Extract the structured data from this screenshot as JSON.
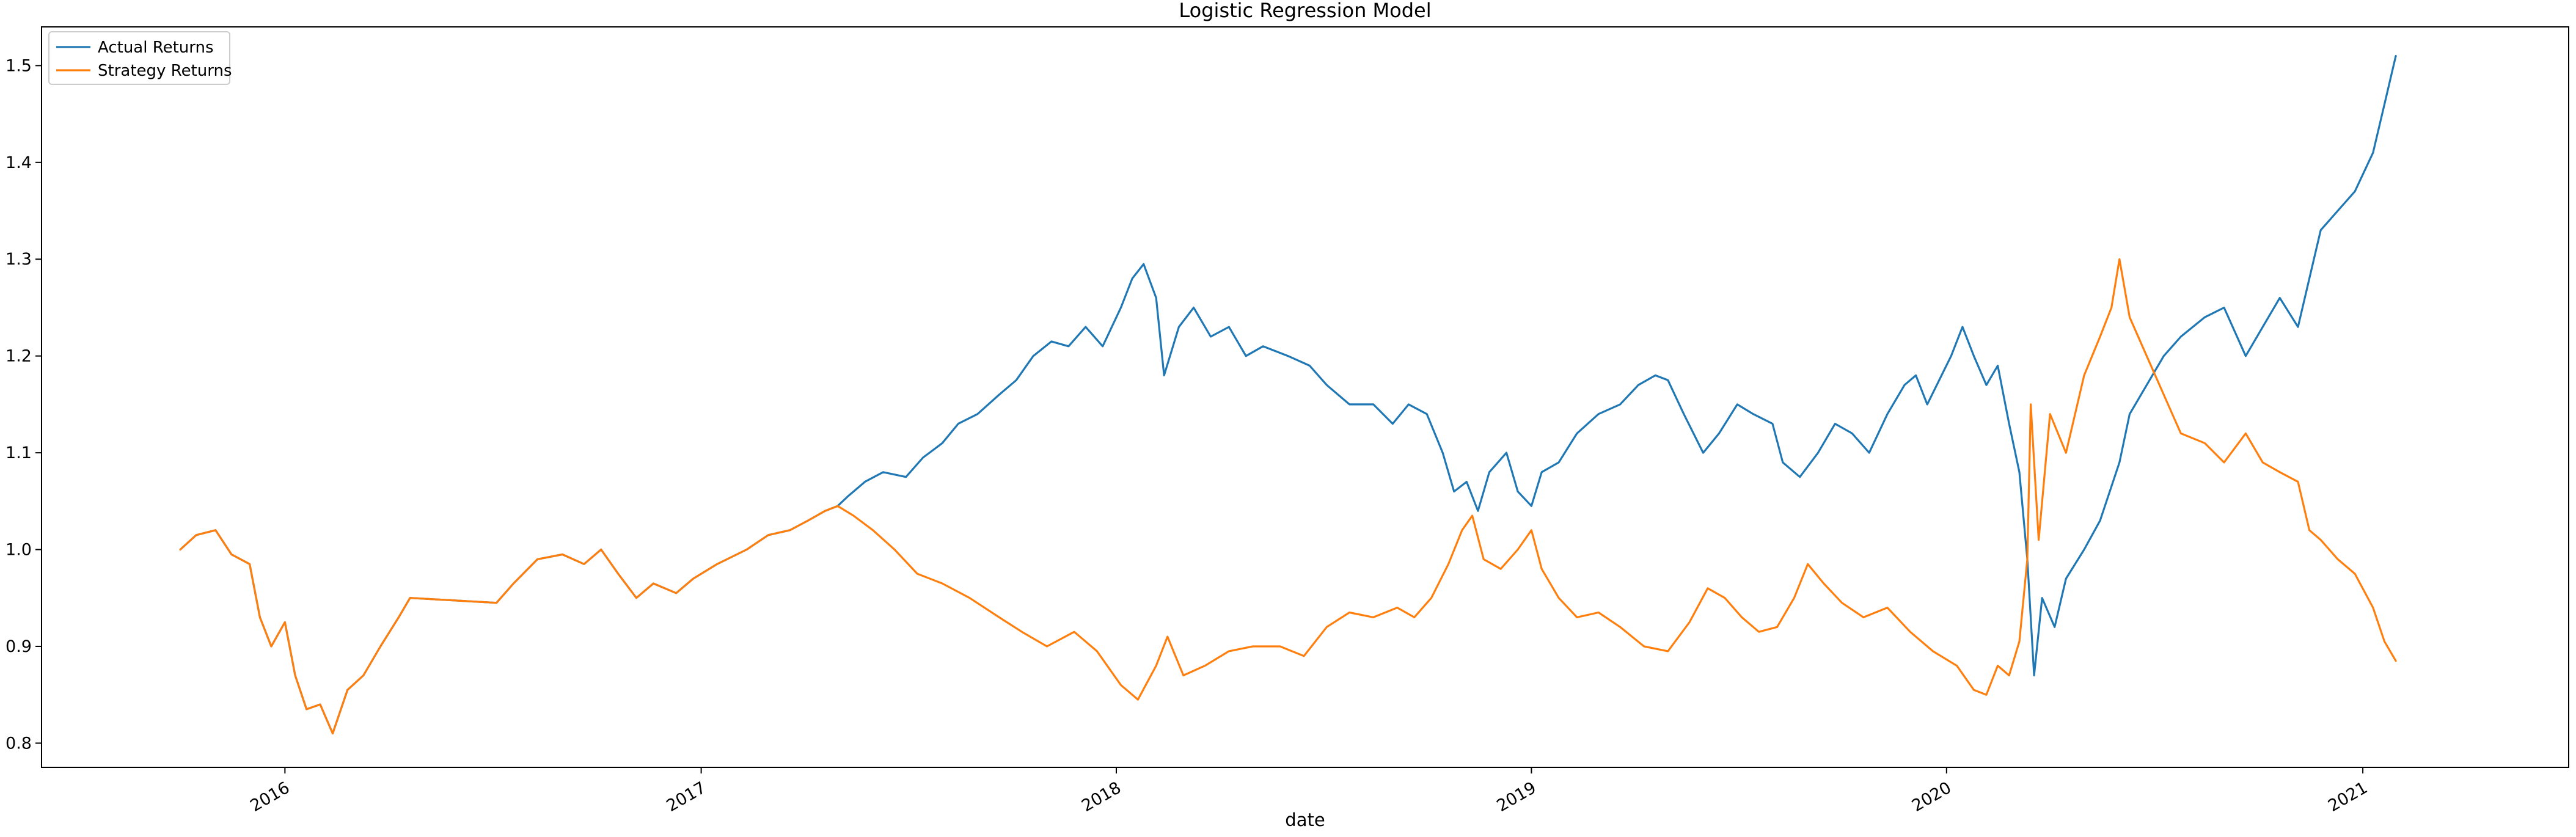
{
  "chart_data": {
    "type": "line",
    "title": "Logistic Regression Model",
    "xlabel": "date",
    "ylabel": "",
    "xlim": [
      "2015-06-01",
      "2021-07-01"
    ],
    "ylim": [
      0.775,
      1.54
    ],
    "x_tick_labels": [
      "2016",
      "2017",
      "2018",
      "2019",
      "2020",
      "2021"
    ],
    "x_tick_values": [
      "2016-01-01",
      "2017-01-01",
      "2018-01-01",
      "2019-01-01",
      "2020-01-01",
      "2021-01-01"
    ],
    "y_tick_labels": [
      "0.8",
      "0.9",
      "1.0",
      "1.1",
      "1.2",
      "1.3",
      "1.4",
      "1.5"
    ],
    "y_tick_values": [
      0.8,
      0.9,
      1.0,
      1.1,
      1.2,
      1.3,
      1.4,
      1.5
    ],
    "grid": false,
    "legend_position": "top-left",
    "series": [
      {
        "name": "Actual Returns",
        "color": "#1f77b4",
        "points": [
          [
            "2015-10-01",
            1.0
          ],
          [
            "2015-10-15",
            1.015
          ],
          [
            "2015-11-01",
            1.02
          ],
          [
            "2015-11-15",
            0.995
          ],
          [
            "2015-12-01",
            0.985
          ],
          [
            "2015-12-10",
            0.93
          ],
          [
            "2015-12-20",
            0.9
          ],
          [
            "2016-01-01",
            0.925
          ],
          [
            "2016-01-10",
            0.87
          ],
          [
            "2016-01-20",
            0.835
          ],
          [
            "2016-02-01",
            0.84
          ],
          [
            "2016-02-12",
            0.81
          ],
          [
            "2016-02-25",
            0.855
          ],
          [
            "2016-03-10",
            0.87
          ],
          [
            "2016-03-25",
            0.9
          ],
          [
            "2016-04-10",
            0.93
          ],
          [
            "2016-04-20",
            0.95
          ],
          [
            "2016-07-05",
            0.945
          ],
          [
            "2016-07-20",
            0.965
          ],
          [
            "2016-08-10",
            0.99
          ],
          [
            "2016-09-01",
            0.995
          ],
          [
            "2016-09-20",
            0.985
          ],
          [
            "2016-10-05",
            1.0
          ],
          [
            "2016-10-20",
            0.975
          ],
          [
            "2016-11-05",
            0.95
          ],
          [
            "2016-11-20",
            0.965
          ],
          [
            "2016-12-10",
            0.955
          ],
          [
            "2016-12-25",
            0.97
          ],
          [
            "2017-01-15",
            0.985
          ],
          [
            "2017-02-10",
            1.0
          ],
          [
            "2017-03-01",
            1.015
          ],
          [
            "2017-03-20",
            1.02
          ],
          [
            "2017-04-05",
            1.03
          ],
          [
            "2017-04-20",
            1.04
          ],
          [
            "2017-05-01",
            1.045
          ],
          [
            "2017-05-10",
            1.055
          ],
          [
            "2017-05-25",
            1.07
          ],
          [
            "2017-06-10",
            1.08
          ],
          [
            "2017-06-30",
            1.075
          ],
          [
            "2017-07-15",
            1.095
          ],
          [
            "2017-08-01",
            1.11
          ],
          [
            "2017-08-15",
            1.13
          ],
          [
            "2017-09-01",
            1.14
          ],
          [
            "2017-09-20",
            1.16
          ],
          [
            "2017-10-05",
            1.175
          ],
          [
            "2017-10-20",
            1.2
          ],
          [
            "2017-11-05",
            1.215
          ],
          [
            "2017-11-20",
            1.21
          ],
          [
            "2017-12-05",
            1.23
          ],
          [
            "2017-12-20",
            1.21
          ],
          [
            "2018-01-05",
            1.25
          ],
          [
            "2018-01-15",
            1.28
          ],
          [
            "2018-01-25",
            1.295
          ],
          [
            "2018-02-05",
            1.26
          ],
          [
            "2018-02-12",
            1.18
          ],
          [
            "2018-02-25",
            1.23
          ],
          [
            "2018-03-10",
            1.25
          ],
          [
            "2018-03-25",
            1.22
          ],
          [
            "2018-04-10",
            1.23
          ],
          [
            "2018-04-25",
            1.2
          ],
          [
            "2018-05-10",
            1.21
          ],
          [
            "2018-06-01",
            1.2
          ],
          [
            "2018-06-20",
            1.19
          ],
          [
            "2018-07-05",
            1.17
          ],
          [
            "2018-07-25",
            1.15
          ],
          [
            "2018-08-15",
            1.15
          ],
          [
            "2018-09-01",
            1.13
          ],
          [
            "2018-09-15",
            1.15
          ],
          [
            "2018-10-01",
            1.14
          ],
          [
            "2018-10-15",
            1.1
          ],
          [
            "2018-10-25",
            1.06
          ],
          [
            "2018-11-05",
            1.07
          ],
          [
            "2018-11-15",
            1.04
          ],
          [
            "2018-11-25",
            1.08
          ],
          [
            "2018-12-10",
            1.1
          ],
          [
            "2018-12-20",
            1.06
          ],
          [
            "2019-01-01",
            1.045
          ],
          [
            "2019-01-10",
            1.08
          ],
          [
            "2019-01-25",
            1.09
          ],
          [
            "2019-02-10",
            1.12
          ],
          [
            "2019-03-01",
            1.14
          ],
          [
            "2019-03-20",
            1.15
          ],
          [
            "2019-04-05",
            1.17
          ],
          [
            "2019-04-20",
            1.18
          ],
          [
            "2019-05-01",
            1.175
          ],
          [
            "2019-05-15",
            1.14
          ],
          [
            "2019-06-01",
            1.1
          ],
          [
            "2019-06-15",
            1.12
          ],
          [
            "2019-07-01",
            1.15
          ],
          [
            "2019-07-15",
            1.14
          ],
          [
            "2019-08-01",
            1.13
          ],
          [
            "2019-08-10",
            1.09
          ],
          [
            "2019-08-25",
            1.075
          ],
          [
            "2019-09-10",
            1.1
          ],
          [
            "2019-09-25",
            1.13
          ],
          [
            "2019-10-10",
            1.12
          ],
          [
            "2019-10-25",
            1.1
          ],
          [
            "2019-11-10",
            1.14
          ],
          [
            "2019-11-25",
            1.17
          ],
          [
            "2019-12-05",
            1.18
          ],
          [
            "2019-12-15",
            1.15
          ],
          [
            "2020-01-05",
            1.2
          ],
          [
            "2020-01-15",
            1.23
          ],
          [
            "2020-01-25",
            1.2
          ],
          [
            "2020-02-05",
            1.17
          ],
          [
            "2020-02-15",
            1.19
          ],
          [
            "2020-02-25",
            1.13
          ],
          [
            "2020-03-05",
            1.08
          ],
          [
            "2020-03-12",
            0.99
          ],
          [
            "2020-03-18",
            0.87
          ],
          [
            "2020-03-25",
            0.95
          ],
          [
            "2020-04-05",
            0.92
          ],
          [
            "2020-04-15",
            0.97
          ],
          [
            "2020-05-01",
            1.0
          ],
          [
            "2020-05-15",
            1.03
          ],
          [
            "2020-06-01",
            1.09
          ],
          [
            "2020-06-10",
            1.14
          ],
          [
            "2020-06-25",
            1.17
          ],
          [
            "2020-07-10",
            1.2
          ],
          [
            "2020-07-25",
            1.22
          ],
          [
            "2020-08-15",
            1.24
          ],
          [
            "2020-09-01",
            1.25
          ],
          [
            "2020-09-20",
            1.2
          ],
          [
            "2020-10-05",
            1.23
          ],
          [
            "2020-10-20",
            1.26
          ],
          [
            "2020-11-05",
            1.23
          ],
          [
            "2020-11-15",
            1.28
          ],
          [
            "2020-11-25",
            1.33
          ],
          [
            "2020-12-10",
            1.35
          ],
          [
            "2020-12-25",
            1.37
          ],
          [
            "2021-01-10",
            1.41
          ],
          [
            "2021-01-20",
            1.46
          ],
          [
            "2021-01-30",
            1.51
          ]
        ]
      },
      {
        "name": "Strategy Returns",
        "color": "#ff7f0e",
        "points": [
          [
            "2015-10-01",
            1.0
          ],
          [
            "2015-10-15",
            1.015
          ],
          [
            "2015-11-01",
            1.02
          ],
          [
            "2015-11-15",
            0.995
          ],
          [
            "2015-12-01",
            0.985
          ],
          [
            "2015-12-10",
            0.93
          ],
          [
            "2015-12-20",
            0.9
          ],
          [
            "2016-01-01",
            0.925
          ],
          [
            "2016-01-10",
            0.87
          ],
          [
            "2016-01-20",
            0.835
          ],
          [
            "2016-02-01",
            0.84
          ],
          [
            "2016-02-12",
            0.81
          ],
          [
            "2016-02-25",
            0.855
          ],
          [
            "2016-03-10",
            0.87
          ],
          [
            "2016-03-25",
            0.9
          ],
          [
            "2016-04-10",
            0.93
          ],
          [
            "2016-04-20",
            0.95
          ],
          [
            "2016-07-05",
            0.945
          ],
          [
            "2016-07-20",
            0.965
          ],
          [
            "2016-08-10",
            0.99
          ],
          [
            "2016-09-01",
            0.995
          ],
          [
            "2016-09-20",
            0.985
          ],
          [
            "2016-10-05",
            1.0
          ],
          [
            "2016-10-20",
            0.975
          ],
          [
            "2016-11-05",
            0.95
          ],
          [
            "2016-11-20",
            0.965
          ],
          [
            "2016-12-10",
            0.955
          ],
          [
            "2016-12-25",
            0.97
          ],
          [
            "2017-01-15",
            0.985
          ],
          [
            "2017-02-10",
            1.0
          ],
          [
            "2017-03-01",
            1.015
          ],
          [
            "2017-03-20",
            1.02
          ],
          [
            "2017-04-05",
            1.03
          ],
          [
            "2017-04-20",
            1.04
          ],
          [
            "2017-05-01",
            1.045
          ],
          [
            "2017-05-15",
            1.035
          ],
          [
            "2017-06-01",
            1.02
          ],
          [
            "2017-06-20",
            1.0
          ],
          [
            "2017-07-10",
            0.975
          ],
          [
            "2017-08-01",
            0.965
          ],
          [
            "2017-08-25",
            0.95
          ],
          [
            "2017-09-20",
            0.93
          ],
          [
            "2017-10-10",
            0.915
          ],
          [
            "2017-11-01",
            0.9
          ],
          [
            "2017-11-25",
            0.915
          ],
          [
            "2017-12-15",
            0.895
          ],
          [
            "2018-01-05",
            0.86
          ],
          [
            "2018-01-20",
            0.845
          ],
          [
            "2018-02-05",
            0.88
          ],
          [
            "2018-02-15",
            0.91
          ],
          [
            "2018-03-01",
            0.87
          ],
          [
            "2018-03-20",
            0.88
          ],
          [
            "2018-04-10",
            0.895
          ],
          [
            "2018-05-01",
            0.9
          ],
          [
            "2018-05-25",
            0.9
          ],
          [
            "2018-06-15",
            0.89
          ],
          [
            "2018-07-05",
            0.92
          ],
          [
            "2018-07-25",
            0.935
          ],
          [
            "2018-08-15",
            0.93
          ],
          [
            "2018-09-05",
            0.94
          ],
          [
            "2018-09-20",
            0.93
          ],
          [
            "2018-10-05",
            0.95
          ],
          [
            "2018-10-20",
            0.985
          ],
          [
            "2018-11-01",
            1.02
          ],
          [
            "2018-11-10",
            1.035
          ],
          [
            "2018-11-20",
            0.99
          ],
          [
            "2018-12-05",
            0.98
          ],
          [
            "2018-12-20",
            1.0
          ],
          [
            "2019-01-01",
            1.02
          ],
          [
            "2019-01-10",
            0.98
          ],
          [
            "2019-01-25",
            0.95
          ],
          [
            "2019-02-10",
            0.93
          ],
          [
            "2019-03-01",
            0.935
          ],
          [
            "2019-03-20",
            0.92
          ],
          [
            "2019-04-10",
            0.9
          ],
          [
            "2019-05-01",
            0.895
          ],
          [
            "2019-05-20",
            0.925
          ],
          [
            "2019-06-05",
            0.96
          ],
          [
            "2019-06-20",
            0.95
          ],
          [
            "2019-07-05",
            0.93
          ],
          [
            "2019-07-20",
            0.915
          ],
          [
            "2019-08-05",
            0.92
          ],
          [
            "2019-08-20",
            0.95
          ],
          [
            "2019-09-01",
            0.985
          ],
          [
            "2019-09-15",
            0.965
          ],
          [
            "2019-10-01",
            0.945
          ],
          [
            "2019-10-20",
            0.93
          ],
          [
            "2019-11-10",
            0.94
          ],
          [
            "2019-11-30",
            0.915
          ],
          [
            "2019-12-20",
            0.895
          ],
          [
            "2020-01-10",
            0.88
          ],
          [
            "2020-01-25",
            0.855
          ],
          [
            "2020-02-05",
            0.85
          ],
          [
            "2020-02-15",
            0.88
          ],
          [
            "2020-02-25",
            0.87
          ],
          [
            "2020-03-05",
            0.905
          ],
          [
            "2020-03-12",
            0.99
          ],
          [
            "2020-03-15",
            1.15
          ],
          [
            "2020-03-22",
            1.01
          ],
          [
            "2020-04-01",
            1.14
          ],
          [
            "2020-04-15",
            1.1
          ],
          [
            "2020-05-01",
            1.18
          ],
          [
            "2020-05-15",
            1.22
          ],
          [
            "2020-05-25",
            1.25
          ],
          [
            "2020-06-01",
            1.3
          ],
          [
            "2020-06-10",
            1.24
          ],
          [
            "2020-06-25",
            1.2
          ],
          [
            "2020-07-10",
            1.16
          ],
          [
            "2020-07-25",
            1.12
          ],
          [
            "2020-08-15",
            1.11
          ],
          [
            "2020-09-01",
            1.09
          ],
          [
            "2020-09-20",
            1.12
          ],
          [
            "2020-10-05",
            1.09
          ],
          [
            "2020-10-20",
            1.08
          ],
          [
            "2020-11-05",
            1.07
          ],
          [
            "2020-11-15",
            1.02
          ],
          [
            "2020-11-25",
            1.01
          ],
          [
            "2020-12-10",
            0.99
          ],
          [
            "2020-12-25",
            0.975
          ],
          [
            "2021-01-10",
            0.94
          ],
          [
            "2021-01-20",
            0.905
          ],
          [
            "2021-01-30",
            0.885
          ]
        ]
      }
    ]
  }
}
